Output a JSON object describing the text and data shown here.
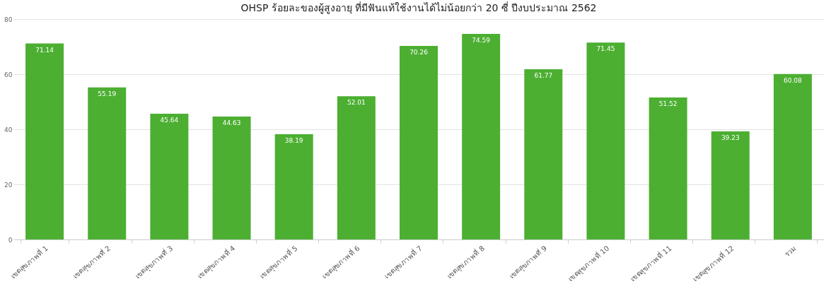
{
  "chart_data": {
    "type": "bar",
    "title": "OHSP ร้อยละของผู้สูงอายุ ที่มีฟันแท้ใช้งานได้ไม่น้อยกว่า 20 ซี่ ปีงบประมาณ 2562",
    "categories": [
      "เขตสุขภาพที่ 1",
      "เขตสุขภาพที่ 2",
      "เขตสุขภาพที่ 3",
      "เขตสุขภาพที่ 4",
      "เขตสุขภาพที่ 5",
      "เขตสุขภาพที่ 6",
      "เขตสุขภาพที่ 7",
      "เขตสุขภาพที่ 8",
      "เขตสุขภาพที่ 9",
      "เขตสุขภาพที่ 10",
      "เขตสุขภาพที่ 11",
      "เขตสุขภาพที่ 12",
      "รวม"
    ],
    "values": [
      71.14,
      55.19,
      45.64,
      44.63,
      38.19,
      52.01,
      70.26,
      74.59,
      61.77,
      71.45,
      51.52,
      39.23,
      60.08
    ],
    "color": "#4caf32",
    "ylim": [
      0,
      80
    ],
    "yticks": [
      0,
      20,
      40,
      60,
      80
    ],
    "grid": "y",
    "data_labels": true
  }
}
